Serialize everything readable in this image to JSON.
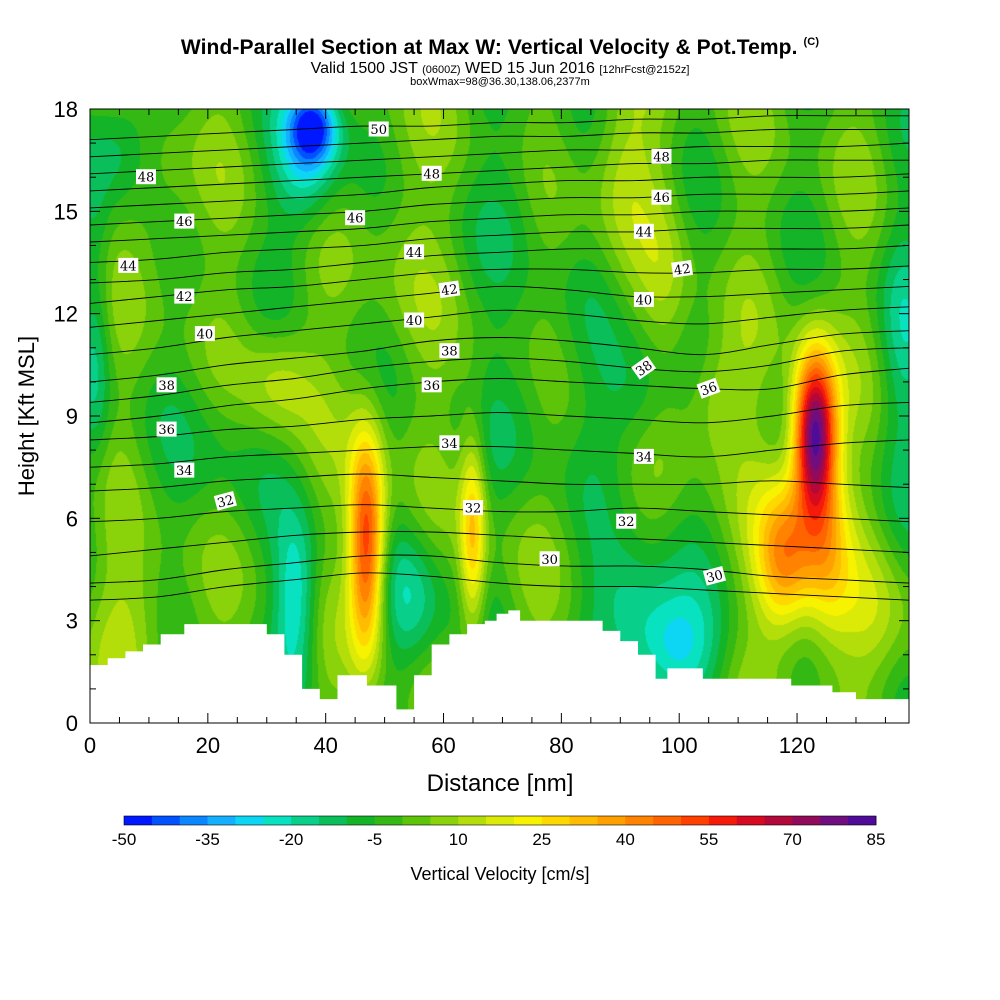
{
  "title": {
    "main": "Wind-Parallel Section at Max W: Vertical Velocity & Pot.Temp.",
    "copyright": "(C)",
    "valid_prefix": "Valid 1500 JST",
    "valid_utc": "(0600Z)",
    "valid_date": "WED 15 Jun 2016",
    "forecast": "[12hrFcst@2152z]",
    "box": "boxWmax=98@36.30,138.06,2377m"
  },
  "chart_data": {
    "type": "heatmap",
    "xlabel": "Distance [nm]",
    "ylabel": "Height [Kft MSL]",
    "xlim": [
      0,
      139
    ],
    "ylim": [
      0,
      18
    ],
    "x_ticks": [
      0,
      20,
      40,
      60,
      80,
      100,
      120
    ],
    "y_ticks": [
      0,
      3,
      6,
      9,
      12,
      15,
      18
    ],
    "colorbar": {
      "label": "Vertical Velocity [cm/s]",
      "min": -50,
      "max": 85,
      "step": 5,
      "tick_labels": [
        -50,
        -35,
        -20,
        -5,
        10,
        25,
        40,
        55,
        70,
        85
      ],
      "colors": [
        "#0018ff",
        "#0052ff",
        "#0a86ff",
        "#14b0ff",
        "#0dd6f5",
        "#08e2c0",
        "#08d08a",
        "#0abf5a",
        "#14b428",
        "#34b814",
        "#5ec40a",
        "#8ad20a",
        "#b4de0a",
        "#dcea08",
        "#f6f200",
        "#ffd800",
        "#ffbc00",
        "#ffa000",
        "#ff8200",
        "#ff6400",
        "#ff4000",
        "#f51a0a",
        "#d60a20",
        "#b2083a",
        "#920a5a",
        "#700e80",
        "#4e0c98"
      ]
    },
    "terrain": {
      "unit": "Kft",
      "x": [
        0,
        3,
        3,
        6,
        6,
        9,
        9,
        12,
        12,
        16,
        16,
        30,
        30,
        33,
        33,
        36,
        36,
        39,
        39,
        42,
        42,
        47,
        47,
        52,
        52,
        55,
        55,
        58,
        58,
        61,
        61,
        64,
        64,
        67,
        67,
        69,
        69,
        71,
        71,
        73,
        73,
        87,
        87,
        90,
        90,
        93,
        93,
        96,
        96,
        98,
        98,
        104,
        104,
        119,
        119,
        126,
        126,
        130,
        130,
        133,
        133,
        139
      ],
      "top": [
        1.7,
        1.7,
        1.9,
        1.9,
        2.1,
        2.1,
        2.3,
        2.3,
        2.6,
        2.6,
        2.9,
        2.9,
        2.6,
        2.6,
        2.0,
        2.0,
        1.0,
        1.0,
        0.7,
        0.7,
        1.4,
        1.4,
        1.1,
        1.1,
        0.4,
        0.4,
        1.4,
        1.4,
        2.3,
        2.3,
        2.6,
        2.6,
        2.9,
        2.9,
        3.0,
        3.0,
        3.2,
        3.2,
        3.3,
        3.3,
        3.0,
        3.0,
        2.7,
        2.7,
        2.4,
        2.4,
        2.0,
        2.0,
        1.3,
        1.3,
        1.6,
        1.6,
        1.3,
        1.3,
        1.1,
        1.1,
        0.9,
        0.9,
        0.7,
        0.7,
        0.7,
        0.7
      ]
    },
    "w_field": {
      "unit": "cm/s",
      "background": 0,
      "features": [
        {
          "x": 47,
          "y": 5.2,
          "value": 60,
          "sx": 2.2,
          "sy": 2.3
        },
        {
          "x": 65,
          "y": 5.5,
          "value": 32,
          "sx": 1.6,
          "sy": 2.2
        },
        {
          "x": 123,
          "y": 8.5,
          "value": 85,
          "sx": 2.6,
          "sy": 1.7
        },
        {
          "x": 118,
          "y": 4.8,
          "value": 42,
          "sx": 3.5,
          "sy": 1.6
        },
        {
          "x": 125,
          "y": 5.0,
          "value": 25,
          "sx": 3.0,
          "sy": 2.0
        },
        {
          "x": 32,
          "y": 10.0,
          "value": 15,
          "sx": 4.0,
          "sy": 1.2
        },
        {
          "x": 90,
          "y": 16.5,
          "value": 12,
          "sx": 4.0,
          "sy": 1.8
        },
        {
          "x": 98,
          "y": 12.0,
          "value": 8,
          "sx": 3.0,
          "sy": 3.0
        },
        {
          "x": 106,
          "y": 9.5,
          "value": 14,
          "sx": 4.0,
          "sy": 1.3
        },
        {
          "x": 38,
          "y": 17.5,
          "value": -40,
          "sx": 3.0,
          "sy": 0.8
        },
        {
          "x": 37,
          "y": 16.3,
          "value": -22,
          "sx": 4.0,
          "sy": 1.4
        },
        {
          "x": 5,
          "y": 17.0,
          "value": -18,
          "sx": 4.0,
          "sy": 1.3
        },
        {
          "x": 1,
          "y": 11.0,
          "value": -15,
          "sx": 2.0,
          "sy": 3.0
        },
        {
          "x": 35,
          "y": 3.5,
          "value": -25,
          "sx": 2.6,
          "sy": 1.8
        },
        {
          "x": 55,
          "y": 3.5,
          "value": -18,
          "sx": 4.0,
          "sy": 1.6
        },
        {
          "x": 98,
          "y": 2.2,
          "value": -28,
          "sx": 6.0,
          "sy": 1.2
        },
        {
          "x": 92,
          "y": 3.8,
          "value": -15,
          "sx": 5.0,
          "sy": 1.2
        },
        {
          "x": 93,
          "y": 9.5,
          "value": -15,
          "sx": 5.0,
          "sy": 1.5
        },
        {
          "x": 74,
          "y": 9.5,
          "value": -10,
          "sx": 4.0,
          "sy": 2.0
        },
        {
          "x": 138,
          "y": 11.0,
          "value": -12,
          "sx": 3.0,
          "sy": 3.0
        },
        {
          "x": 73,
          "y": 15.5,
          "value": -8,
          "sx": 4.0,
          "sy": 2.0
        },
        {
          "x": 52,
          "y": 14.5,
          "value": 6,
          "sx": 4.0,
          "sy": 3.0
        },
        {
          "x": 12,
          "y": 15.0,
          "value": 8,
          "sx": 4.0,
          "sy": 2.0
        },
        {
          "x": 8,
          "y": 3.0,
          "value": 10,
          "sx": 6.0,
          "sy": 1.5
        },
        {
          "x": 22,
          "y": 8.0,
          "value": -8,
          "sx": 5.0,
          "sy": 2.0
        },
        {
          "x": 134,
          "y": 3.0,
          "value": 10,
          "sx": 5.0,
          "sy": 1.5
        }
      ]
    },
    "theta_contours": {
      "unit": "deg C (x10 K)",
      "levels": [
        {
          "value": 29,
          "ys": [
            3.6,
            3.7,
            4.0,
            4.2,
            4.4,
            4.3,
            4.1,
            4.0,
            4.0,
            3.9,
            3.8,
            3.7,
            3.6
          ]
        },
        {
          "value": 30,
          "ys": [
            4.1,
            4.2,
            4.5,
            4.7,
            4.9,
            4.9,
            4.7,
            4.6,
            4.6,
            4.5,
            4.3,
            4.2,
            4.1
          ]
        },
        {
          "value": 31,
          "ys": [
            4.9,
            5.1,
            5.3,
            5.5,
            5.6,
            5.6,
            5.5,
            5.4,
            5.4,
            5.3,
            5.2,
            5.1,
            5.0
          ]
        },
        {
          "value": 32,
          "ys": [
            5.9,
            6.0,
            6.2,
            6.3,
            6.4,
            6.3,
            6.2,
            6.2,
            6.3,
            6.2,
            6.1,
            6.0,
            5.9
          ]
        },
        {
          "value": 33,
          "ys": [
            6.8,
            6.9,
            7.1,
            7.2,
            7.3,
            7.2,
            7.1,
            7.0,
            7.0,
            7.0,
            7.1,
            7.0,
            6.9
          ]
        },
        {
          "value": 34,
          "ys": [
            7.5,
            7.6,
            7.8,
            7.9,
            8.0,
            8.1,
            8.1,
            8.0,
            7.9,
            7.8,
            8.0,
            8.2,
            8.3
          ]
        },
        {
          "value": 35,
          "ys": [
            8.3,
            8.4,
            8.6,
            8.7,
            8.9,
            9.0,
            9.1,
            9.0,
            8.9,
            8.8,
            9.0,
            9.3,
            9.4
          ]
        },
        {
          "value": 36,
          "ys": [
            8.8,
            9.0,
            9.3,
            9.5,
            9.8,
            10.0,
            10.1,
            10.0,
            9.9,
            9.8,
            9.8,
            10.2,
            10.4
          ]
        },
        {
          "value": 37,
          "ys": [
            9.4,
            9.6,
            9.9,
            10.1,
            10.4,
            10.6,
            10.7,
            10.6,
            10.4,
            10.3,
            10.5,
            10.9,
            11.0
          ]
        },
        {
          "value": 38,
          "ys": [
            10.0,
            10.2,
            10.5,
            10.7,
            10.9,
            11.2,
            11.3,
            11.2,
            11.0,
            10.8,
            11.1,
            11.4,
            11.5
          ]
        },
        {
          "value": 39,
          "ys": [
            10.8,
            11.0,
            11.3,
            11.5,
            11.7,
            11.9,
            12.1,
            12.0,
            11.8,
            11.7,
            11.9,
            12.1,
            12.2
          ]
        },
        {
          "value": 40,
          "ys": [
            11.6,
            11.8,
            12.0,
            12.2,
            12.4,
            12.6,
            12.8,
            12.7,
            12.5,
            12.5,
            12.6,
            12.7,
            12.8
          ]
        },
        {
          "value": 41,
          "ys": [
            12.3,
            12.5,
            12.7,
            12.8,
            13.0,
            13.2,
            13.3,
            13.3,
            13.2,
            13.2,
            13.3,
            13.3,
            13.4
          ]
        },
        {
          "value": 42,
          "ys": [
            12.9,
            13.0,
            13.2,
            13.3,
            13.5,
            13.7,
            13.8,
            13.9,
            13.9,
            13.9,
            13.9,
            13.9,
            14.0
          ]
        },
        {
          "value": 43,
          "ys": [
            13.5,
            13.6,
            13.8,
            13.9,
            14.0,
            14.2,
            14.3,
            14.4,
            14.4,
            14.5,
            14.5,
            14.5,
            14.6
          ]
        },
        {
          "value": 44,
          "ys": [
            14.1,
            14.2,
            14.3,
            14.4,
            14.5,
            14.7,
            14.8,
            14.9,
            14.9,
            15.0,
            15.0,
            15.0,
            15.1
          ]
        },
        {
          "value": 45,
          "ys": [
            14.6,
            14.7,
            14.8,
            14.9,
            15.0,
            15.2,
            15.3,
            15.4,
            15.4,
            15.5,
            15.5,
            15.5,
            15.6
          ]
        },
        {
          "value": 46,
          "ys": [
            15.1,
            15.2,
            15.3,
            15.4,
            15.5,
            15.7,
            15.8,
            15.9,
            15.9,
            16.0,
            16.0,
            16.0,
            16.1
          ]
        },
        {
          "value": 47,
          "ys": [
            15.6,
            15.7,
            15.8,
            15.9,
            16.0,
            16.1,
            16.2,
            16.3,
            16.4,
            16.4,
            16.5,
            16.5,
            16.5
          ]
        },
        {
          "value": 48,
          "ys": [
            16.1,
            16.2,
            16.3,
            16.4,
            16.5,
            16.6,
            16.7,
            16.8,
            16.8,
            16.9,
            16.9,
            16.9,
            17.0
          ]
        },
        {
          "value": 49,
          "ys": [
            16.6,
            16.7,
            16.8,
            16.9,
            17.0,
            17.1,
            17.2,
            17.2,
            17.3,
            17.3,
            17.4,
            17.4,
            17.4
          ]
        },
        {
          "value": 50,
          "ys": [
            17.1,
            17.2,
            17.3,
            17.4,
            17.5,
            17.5,
            17.6,
            17.6,
            17.7,
            17.7,
            17.8,
            17.8,
            17.8
          ]
        }
      ],
      "labels": [
        {
          "text": "50",
          "x": 49,
          "y": 17.4,
          "rot": 0
        },
        {
          "text": "48",
          "x": 9.5,
          "y": 16.0,
          "rot": 0
        },
        {
          "text": "48",
          "x": 58,
          "y": 16.1,
          "rot": 0
        },
        {
          "text": "48",
          "x": 97,
          "y": 16.6,
          "rot": 0
        },
        {
          "text": "46",
          "x": 16,
          "y": 14.7,
          "rot": 0
        },
        {
          "text": "46",
          "x": 45,
          "y": 14.8,
          "rot": 0
        },
        {
          "text": "46",
          "x": 97,
          "y": 15.4,
          "rot": 0
        },
        {
          "text": "44",
          "x": 6.5,
          "y": 13.4,
          "rot": 0
        },
        {
          "text": "44",
          "x": 55,
          "y": 13.8,
          "rot": 0
        },
        {
          "text": "44",
          "x": 94,
          "y": 14.4,
          "rot": 0
        },
        {
          "text": "42",
          "x": 16,
          "y": 12.5,
          "rot": 0
        },
        {
          "text": "42",
          "x": 61,
          "y": 12.7,
          "rot": -8
        },
        {
          "text": "42",
          "x": 100.5,
          "y": 13.3,
          "rot": -8
        },
        {
          "text": "40",
          "x": 19.5,
          "y": 11.4,
          "rot": 0
        },
        {
          "text": "40",
          "x": 55,
          "y": 11.8,
          "rot": 0
        },
        {
          "text": "40",
          "x": 94,
          "y": 12.4,
          "rot": 0
        },
        {
          "text": "38",
          "x": 13,
          "y": 9.9,
          "rot": 0
        },
        {
          "text": "38",
          "x": 61,
          "y": 10.9,
          "rot": 0
        },
        {
          "text": "38",
          "x": 94,
          "y": 10.4,
          "rot": -35
        },
        {
          "text": "36",
          "x": 13,
          "y": 8.6,
          "rot": 0
        },
        {
          "text": "36",
          "x": 58,
          "y": 9.9,
          "rot": 0
        },
        {
          "text": "36",
          "x": 105,
          "y": 9.8,
          "rot": -20
        },
        {
          "text": "34",
          "x": 16,
          "y": 7.4,
          "rot": 0
        },
        {
          "text": "34",
          "x": 61,
          "y": 8.2,
          "rot": 0
        },
        {
          "text": "34",
          "x": 94,
          "y": 7.8,
          "rot": 0
        },
        {
          "text": "32",
          "x": 23,
          "y": 6.5,
          "rot": -15
        },
        {
          "text": "32",
          "x": 65,
          "y": 6.3,
          "rot": 0
        },
        {
          "text": "32",
          "x": 91,
          "y": 5.9,
          "rot": 0
        },
        {
          "text": "30",
          "x": 78,
          "y": 4.8,
          "rot": 0
        },
        {
          "text": "30",
          "x": 106,
          "y": 4.3,
          "rot": -15
        }
      ]
    }
  }
}
